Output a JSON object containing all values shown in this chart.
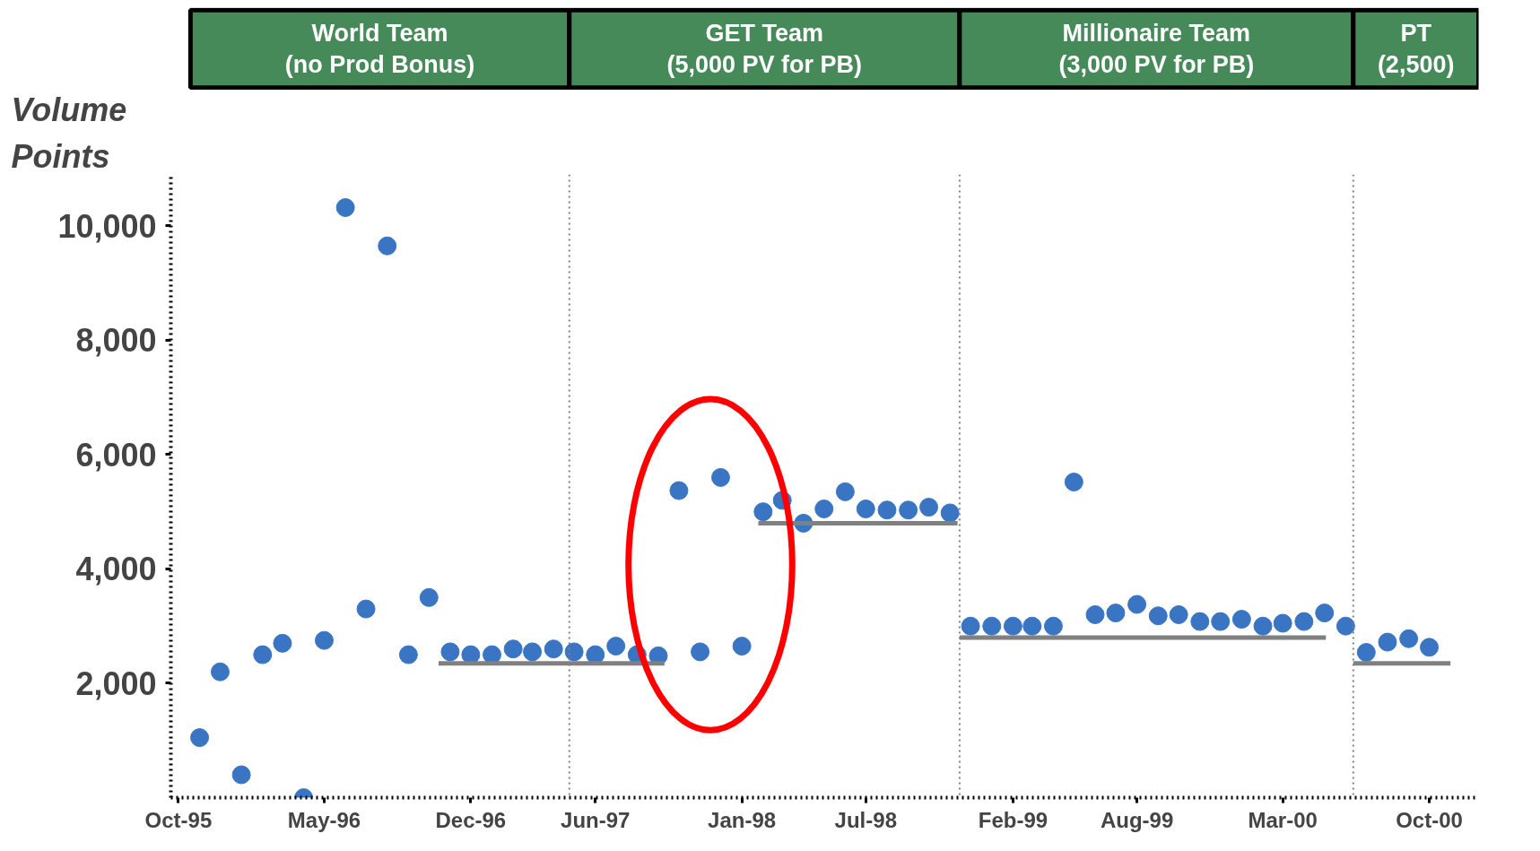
{
  "chart_data": {
    "type": "scatter",
    "ylabel": "Volume\nPoints",
    "marker": "circle",
    "grid": false,
    "xlim": [
      "1995-09-20",
      "2000-12-12"
    ],
    "ylim": [
      0,
      10900
    ],
    "xticks": [
      {
        "value": "1995-10",
        "label": "Oct-95"
      },
      {
        "value": "1996-05",
        "label": "May-96"
      },
      {
        "value": "1996-12",
        "label": "Dec-96"
      },
      {
        "value": "1997-06",
        "label": "Jun-97"
      },
      {
        "value": "1998-01",
        "label": "Jan-98"
      },
      {
        "value": "1998-07",
        "label": "Jul-98"
      },
      {
        "value": "1999-02",
        "label": "Feb-99"
      },
      {
        "value": "1999-08",
        "label": "Aug-99"
      },
      {
        "value": "2000-03",
        "label": "Mar-00"
      },
      {
        "value": "2000-10",
        "label": "Oct-00"
      }
    ],
    "yticks": [
      {
        "value": 2000,
        "label": "2,000"
      },
      {
        "value": 4000,
        "label": "4,000"
      },
      {
        "value": 6000,
        "label": "6,000"
      },
      {
        "value": 8000,
        "label": "8,000"
      },
      {
        "value": 10000,
        "label": "10,000"
      }
    ],
    "series": [
      {
        "color": "#3a75c4",
        "x": [
          "1995-11",
          "1995-12",
          "1996-01",
          "1996-02",
          "1996-03",
          "1996-04",
          "1996-05",
          "1996-06",
          "1996-07",
          "1996-08",
          "1996-09",
          "1996-10",
          "1996-11",
          "1996-12",
          "1997-01",
          "1997-02",
          "1997-03",
          "1997-04",
          "1997-05",
          "1997-06",
          "1997-07",
          "1997-08",
          "1997-09",
          "1997-10",
          "1997-11",
          "1997-12",
          "1998-01",
          "1998-02",
          "1998-03",
          "1998-04",
          "1998-05",
          "1998-06",
          "1998-07",
          "1998-08",
          "1998-09",
          "1998-10",
          "1998-11",
          "1998-12",
          "1999-01",
          "1999-02",
          "1999-03",
          "1999-04",
          "1999-05",
          "1999-06",
          "1999-07",
          "1999-08",
          "1999-09",
          "1999-10",
          "1999-11",
          "1999-12",
          "2000-01",
          "2000-02",
          "2000-03",
          "2000-04",
          "2000-05",
          "2000-06",
          "2000-07",
          "2000-08",
          "2000-09",
          "2000-10"
        ],
        "values": [
          1050,
          2200,
          400,
          2500,
          2700,
          0,
          2750,
          10320,
          3300,
          9650,
          2500,
          3500,
          2550,
          2500,
          2500,
          2600,
          2550,
          2600,
          2550,
          2500,
          2650,
          2500,
          2480,
          5370,
          2550,
          5600,
          2650,
          5000,
          5200,
          4800,
          5050,
          5350,
          5050,
          5030,
          5030,
          5080,
          4980,
          3000,
          3000,
          3000,
          3000,
          3000,
          5520,
          3200,
          3230,
          3380,
          3180,
          3200,
          3080,
          3080,
          3120,
          3000,
          3050,
          3080,
          3230,
          3000,
          2540,
          2720,
          2780,
          2630
        ]
      },
      {
        "type": "line",
        "marker": "none",
        "color": "#808080",
        "x": [
          "1996-10-15",
          "1997-09-10"
        ],
        "values": [
          2350,
          2350
        ]
      },
      {
        "type": "line",
        "marker": "none",
        "color": "#808080",
        "x": [
          "1998-01-25",
          "1998-11-12"
        ],
        "values": [
          4800,
          4800
        ]
      },
      {
        "type": "line",
        "marker": "none",
        "color": "#808080",
        "x": [
          "1998-11-15",
          "2000-05-03"
        ],
        "values": [
          2800,
          2800
        ]
      },
      {
        "type": "line",
        "marker": "none",
        "color": "#808080",
        "x": [
          "2000-06-12",
          "2000-11-01"
        ],
        "values": [
          2350,
          2350
        ]
      }
    ],
    "ref_lines": [
      {
        "axis": "x",
        "value": "1997-04-24",
        "color": "#808080",
        "line_style": "dotted"
      },
      {
        "axis": "x",
        "value": "1998-11-15",
        "color": "#808080",
        "line_style": "dotted"
      },
      {
        "axis": "x",
        "value": "2000-06-12",
        "color": "#808080",
        "line_style": "dotted"
      }
    ],
    "annotations": [
      "World Team\n(no Prod Bonus)",
      "GET Team\n(5,000 PV for PB)",
      "Millionaire Team\n(3,000 PV for PB)",
      "PT\n(2,500)"
    ]
  }
}
